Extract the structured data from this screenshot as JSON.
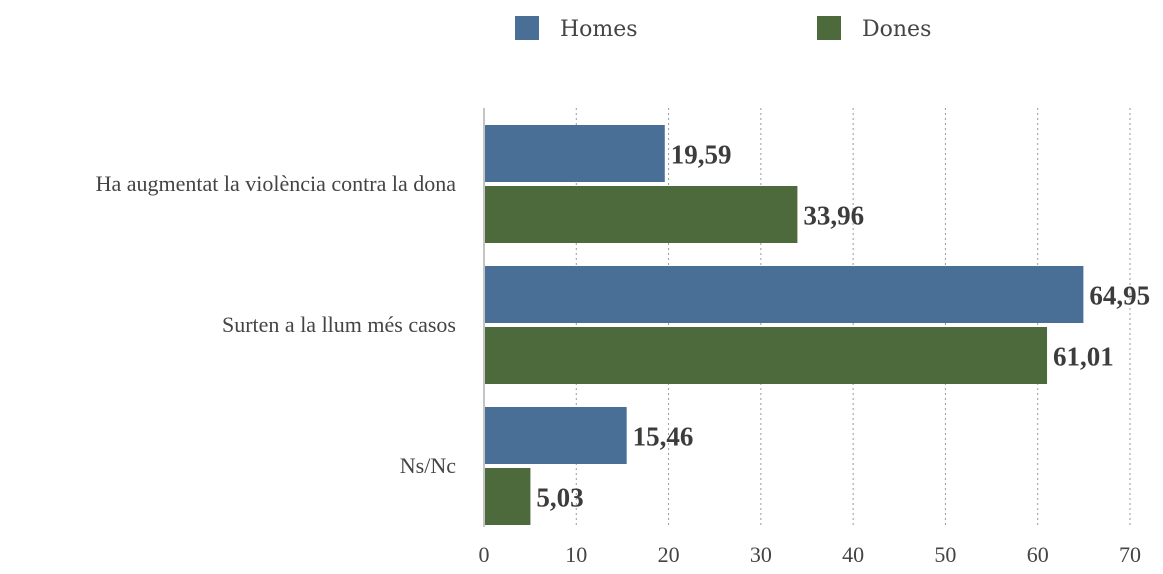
{
  "chart_data": {
    "type": "bar",
    "orientation": "horizontal",
    "categories": [
      "Ha augmentat la violència contra la dona",
      "Surten a la llum més casos",
      "Ns/Nc"
    ],
    "series": [
      {
        "name": "Homes",
        "color": "#4a6f96",
        "values": [
          19.59,
          64.95,
          15.46
        ],
        "labels": [
          "19,59",
          "64,95",
          "15,46"
        ]
      },
      {
        "name": "Dones",
        "color": "#4d6a3c",
        "values": [
          33.96,
          61.01,
          5.03
        ],
        "labels": [
          "33,96",
          "61,01",
          "5,03"
        ]
      }
    ],
    "xlim": [
      0,
      70
    ],
    "xticks": [
      0,
      10,
      20,
      30,
      40,
      50,
      60,
      70
    ],
    "grid": "vertical dotted",
    "legend_position": "top"
  }
}
